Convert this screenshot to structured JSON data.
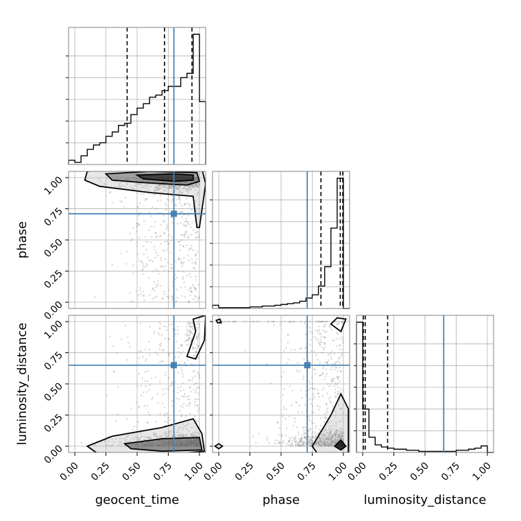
{
  "chart_data": {
    "type": "corner",
    "parameters": [
      "geocent_time",
      "phase",
      "luminosity_distance"
    ],
    "axis_range": [
      -0.05,
      1.05
    ],
    "tick_values": [
      0.0,
      0.25,
      0.5,
      0.75,
      1.0
    ],
    "tick_labels": [
      "0.00",
      "0.25",
      "0.50",
      "0.75",
      "1.00"
    ],
    "x_labels": [
      "geocent_time",
      "phase",
      "luminosity_distance"
    ],
    "y_labels": [
      "",
      "phase",
      "luminosity_distance"
    ],
    "grid": true,
    "colors": {
      "histogram": "#000000",
      "truth": "#4682b4",
      "points": "#808080",
      "contour": "#000000"
    },
    "truths": {
      "geocent_time": 0.795,
      "phase": 0.71,
      "luminosity_distance": 0.65
    },
    "quantiles": {
      "geocent_time": [
        0.42,
        0.72,
        0.94
      ],
      "phase": [
        0.82,
        0.975,
        0.995
      ],
      "luminosity_distance": [
        0.005,
        0.02,
        0.2
      ]
    },
    "histograms": {
      "geocent_time": {
        "bin_edges": [
          -0.05,
          0.0,
          0.05,
          0.1,
          0.15,
          0.2,
          0.25,
          0.3,
          0.35,
          0.4,
          0.45,
          0.5,
          0.55,
          0.6,
          0.65,
          0.7,
          0.75,
          0.8,
          0.85,
          0.9,
          0.95,
          1.0,
          1.05
        ],
        "counts": [
          2,
          1,
          4,
          7,
          9,
          10,
          13,
          15,
          18,
          19,
          23,
          26,
          28,
          31,
          32,
          34,
          36,
          36,
          40,
          42,
          60,
          29
        ]
      },
      "phase": {
        "bin_edges": [
          -0.05,
          0.0,
          0.05,
          0.1,
          0.15,
          0.2,
          0.25,
          0.3,
          0.35,
          0.4,
          0.45,
          0.5,
          0.55,
          0.6,
          0.65,
          0.7,
          0.75,
          0.8,
          0.85,
          0.9,
          0.95,
          1.0,
          1.05
        ],
        "counts": [
          4,
          1,
          1,
          1,
          1,
          1,
          2,
          2,
          3,
          3,
          4,
          5,
          6,
          7,
          9,
          13,
          17,
          28,
          52,
          100,
          162,
          0
        ]
      },
      "luminosity_distance": {
        "bin_edges": [
          -0.05,
          0.0,
          0.05,
          0.1,
          0.15,
          0.2,
          0.25,
          0.3,
          0.35,
          0.4,
          0.45,
          0.5,
          0.55,
          0.6,
          0.65,
          0.7,
          0.75,
          0.8,
          0.85,
          0.9,
          0.95,
          1.0,
          1.05
        ],
        "counts": [
          120,
          40,
          14,
          7,
          5,
          4,
          3,
          3,
          2,
          2,
          1,
          1,
          1,
          1,
          1,
          1,
          2,
          2,
          3,
          4,
          6,
          0
        ]
      }
    }
  }
}
